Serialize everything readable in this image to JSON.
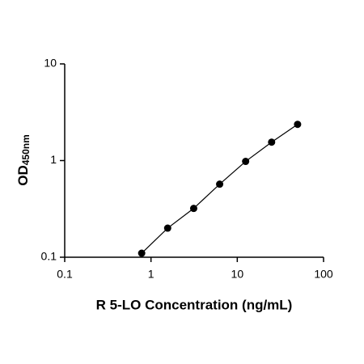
{
  "chart_data": {
    "type": "scatter",
    "x_label": "R 5-LO Concentration (ng/mL)",
    "y_label": "OD",
    "y_label_sub": "450nm",
    "x": [
      0.78,
      1.56,
      3.125,
      6.25,
      12.5,
      25,
      50
    ],
    "series": [
      {
        "name": "R 5-LO",
        "color": "#000000",
        "values": [
          0.11,
          0.2,
          0.32,
          0.57,
          0.98,
          1.55,
          2.37
        ]
      }
    ],
    "xlim": [
      0.1,
      100
    ],
    "xticks": [
      0.1,
      1,
      10,
      100
    ],
    "ylim": [
      0.1,
      10
    ],
    "yticks": [
      0.1,
      1,
      10
    ],
    "xscale": "log",
    "yscale": "log",
    "grid": false
  }
}
